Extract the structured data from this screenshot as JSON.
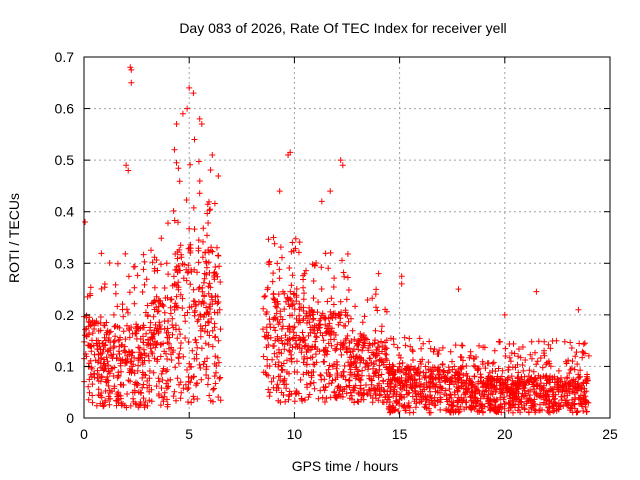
{
  "chart_data": {
    "type": "scatter",
    "title": "Day 083 of 2026, Rate Of TEC Index for receiver yell",
    "xlabel": "GPS time / hours",
    "ylabel": "ROTI / TECUs",
    "xlim": [
      0,
      25
    ],
    "ylim": [
      0,
      0.7
    ],
    "x_ticks": [
      0,
      5,
      10,
      15,
      20,
      25
    ],
    "x_tick_labels": [
      "0",
      "5",
      "10",
      "15",
      "20",
      "25"
    ],
    "y_ticks": [
      0,
      0.1,
      0.2,
      0.3,
      0.4,
      0.5,
      0.6,
      0.7
    ],
    "y_tick_labels": [
      "0",
      "0.1",
      "0.2",
      "0.3",
      "0.4",
      "0.5",
      "0.6",
      "0.7"
    ],
    "grid": true,
    "marker": "+",
    "color": "#ff0000",
    "segments": [
      {
        "t0": 0.0,
        "t1": 1.0,
        "base": 0.02,
        "mean": 0.12,
        "spread": 0.2,
        "max": 0.38
      },
      {
        "t0": 1.0,
        "t1": 3.0,
        "base": 0.02,
        "mean": 0.11,
        "spread": 0.22,
        "max": 0.49
      },
      {
        "t0": 3.0,
        "t1": 4.2,
        "base": 0.02,
        "mean": 0.14,
        "spread": 0.24,
        "max": 0.45
      },
      {
        "t0": 4.2,
        "t1": 6.5,
        "base": 0.03,
        "mean": 0.2,
        "spread": 0.3,
        "max": 0.64
      },
      {
        "t0": 8.5,
        "t1": 10.5,
        "base": 0.03,
        "mean": 0.15,
        "spread": 0.2,
        "max": 0.51
      },
      {
        "t0": 10.5,
        "t1": 12.6,
        "base": 0.03,
        "mean": 0.13,
        "spread": 0.2,
        "max": 0.5
      },
      {
        "t0": 12.6,
        "t1": 14.4,
        "base": 0.03,
        "mean": 0.1,
        "spread": 0.15,
        "max": 0.28
      },
      {
        "t0": 14.4,
        "t1": 18.0,
        "base": 0.01,
        "mean": 0.06,
        "spread": 0.1,
        "max": 0.27
      },
      {
        "t0": 18.0,
        "t1": 24.0,
        "base": 0.01,
        "mean": 0.05,
        "spread": 0.1,
        "max": 0.25
      }
    ],
    "notable_points": [
      {
        "x": 2.2,
        "y": 0.68
      },
      {
        "x": 2.25,
        "y": 0.675
      },
      {
        "x": 2.25,
        "y": 0.65
      },
      {
        "x": 5.0,
        "y": 0.64
      },
      {
        "x": 5.2,
        "y": 0.63
      },
      {
        "x": 4.9,
        "y": 0.6
      },
      {
        "x": 4.7,
        "y": 0.59
      },
      {
        "x": 5.5,
        "y": 0.58
      },
      {
        "x": 5.6,
        "y": 0.57
      },
      {
        "x": 4.4,
        "y": 0.57
      },
      {
        "x": 5.25,
        "y": 0.54
      },
      {
        "x": 4.3,
        "y": 0.52
      },
      {
        "x": 6.1,
        "y": 0.51
      },
      {
        "x": 2.0,
        "y": 0.49
      },
      {
        "x": 2.1,
        "y": 0.48
      },
      {
        "x": 9.7,
        "y": 0.51
      },
      {
        "x": 9.8,
        "y": 0.515
      },
      {
        "x": 12.2,
        "y": 0.5
      },
      {
        "x": 12.3,
        "y": 0.49
      },
      {
        "x": 9.3,
        "y": 0.44
      },
      {
        "x": 11.7,
        "y": 0.44
      },
      {
        "x": 11.3,
        "y": 0.42
      },
      {
        "x": 14.0,
        "y": 0.28
      },
      {
        "x": 15.1,
        "y": 0.275
      },
      {
        "x": 15.1,
        "y": 0.26
      },
      {
        "x": 17.8,
        "y": 0.25
      },
      {
        "x": 21.5,
        "y": 0.245
      },
      {
        "x": 23.5,
        "y": 0.21
      },
      {
        "x": 20.0,
        "y": 0.2
      },
      {
        "x": 0.05,
        "y": 0.38
      }
    ],
    "n_points": 2600
  }
}
